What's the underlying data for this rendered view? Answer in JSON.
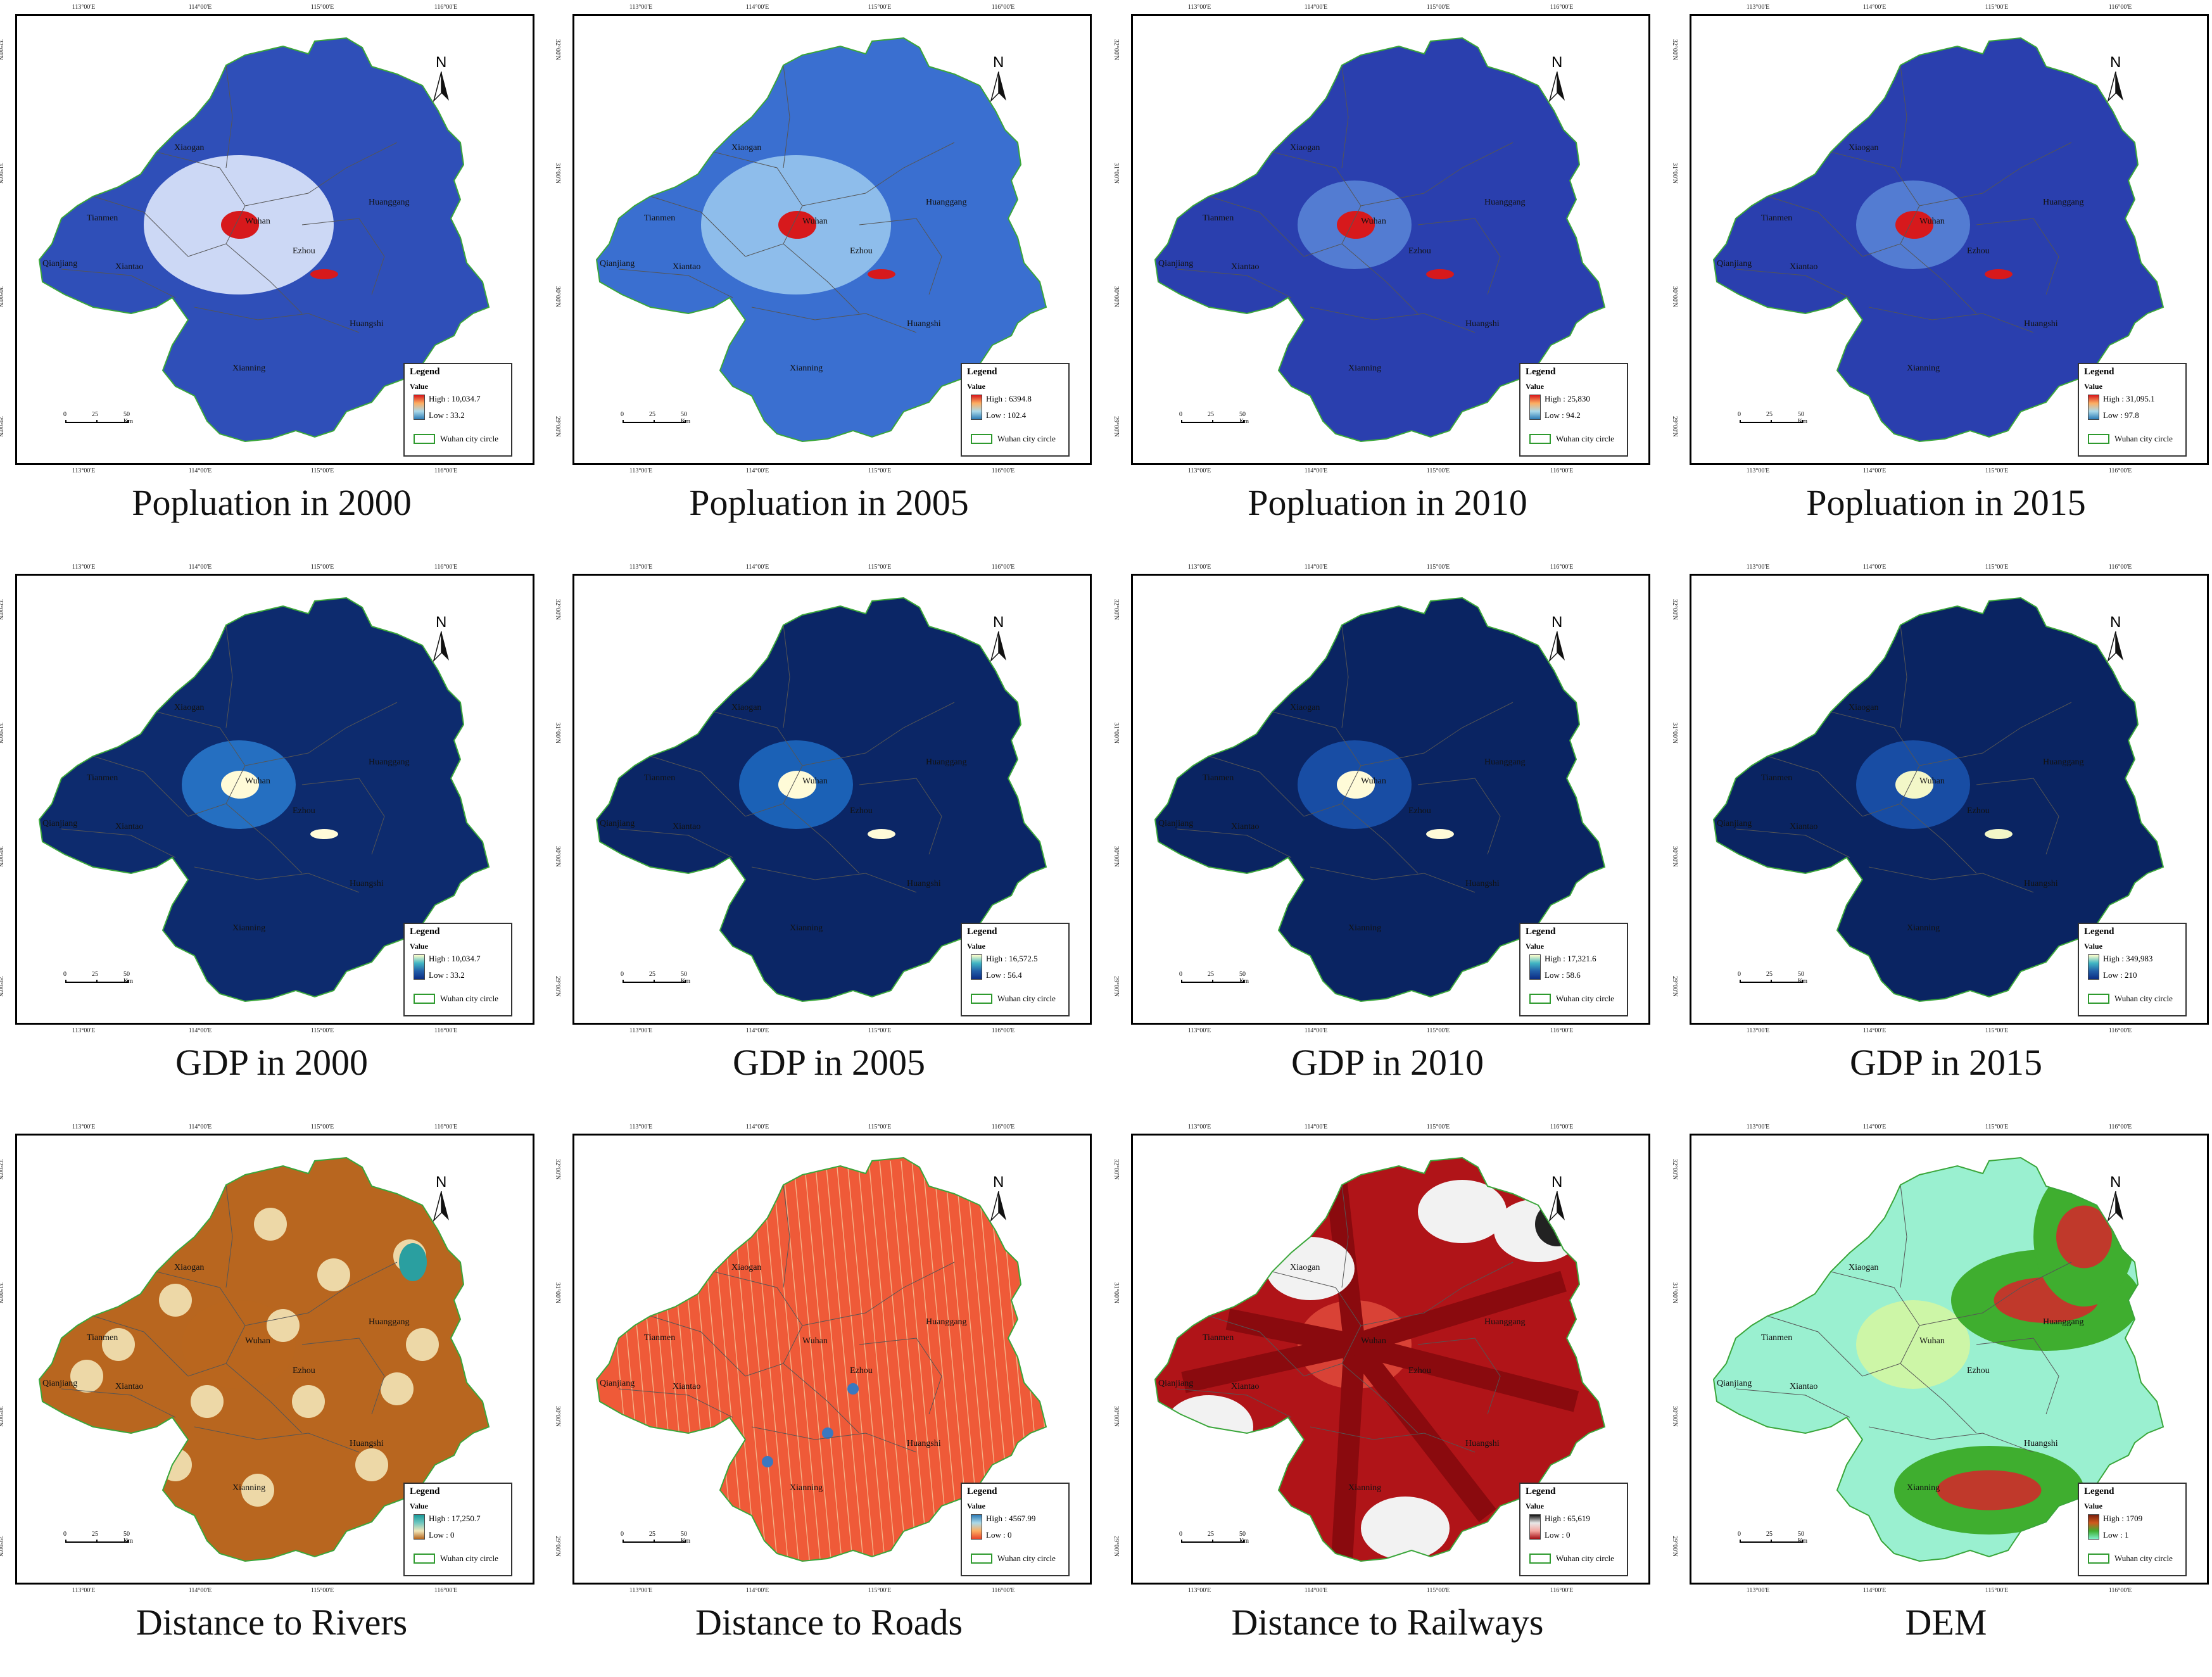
{
  "panels": [
    {
      "id": "pop2000",
      "caption": "Popluation in 2000",
      "legend": {
        "title": "Legend",
        "value_label": "Value",
        "high": "High : 10,034.7",
        "low": "Low : 33.2",
        "boundary": "Wuhan city circle",
        "ramp": [
          "#d7191c",
          "#fdae61",
          "#abd9e9",
          "#2c7bb6"
        ]
      },
      "fill": "#2f4fb8",
      "core": "#e8f0ff",
      "hot": "#d7191c"
    },
    {
      "id": "pop2005",
      "caption": "Popluation in 2005",
      "legend": {
        "title": "Legend",
        "value_label": "Value",
        "high": "High : 6394.8",
        "low": "Low : 102.4",
        "boundary": "Wuhan city circle",
        "ramp": [
          "#d7191c",
          "#fdae61",
          "#abd9e9",
          "#2c7bb6"
        ]
      },
      "fill": "#3a6fd0",
      "core": "#9ecbf0",
      "hot": "#d7191c"
    },
    {
      "id": "pop2010",
      "caption": "Popluation in 2010",
      "legend": {
        "title": "Legend",
        "value_label": "Value",
        "high": "High : 25,830",
        "low": "Low : 94.2",
        "boundary": "Wuhan city circle",
        "ramp": [
          "#d7191c",
          "#fdae61",
          "#abd9e9",
          "#2c7bb6"
        ]
      },
      "fill": "#2a3fae",
      "core": "#5a87d8",
      "hot": "#d7191c"
    },
    {
      "id": "pop2015",
      "caption": "Popluation in 2015",
      "legend": {
        "title": "Legend",
        "value_label": "Value",
        "high": "High : 31,095.1",
        "low": "Low : 97.8",
        "boundary": "Wuhan city circle",
        "ramp": [
          "#d7191c",
          "#fdae61",
          "#abd9e9",
          "#2c7bb6"
        ]
      },
      "fill": "#2a3fae",
      "core": "#5a87d8",
      "hot": "#d7191c"
    },
    {
      "id": "gdp2000",
      "caption": "GDP in 2000",
      "legend": {
        "title": "Legend",
        "value_label": "Value",
        "high": "High : 10,034.7",
        "low": "Low : 33.2",
        "boundary": "Wuhan city circle",
        "ramp": [
          "#ffffcc",
          "#41b6c4",
          "#225ea8",
          "#0c2c84"
        ]
      },
      "fill": "#0d2b6e",
      "core": "#2a7bd0",
      "hot": "#fffbd8"
    },
    {
      "id": "gdp2005",
      "caption": "GDP in 2005",
      "legend": {
        "title": "Legend",
        "value_label": "Value",
        "high": "High : 16,572.5",
        "low": "Low : 56.4",
        "boundary": "Wuhan city circle",
        "ramp": [
          "#ffffcc",
          "#41b6c4",
          "#225ea8",
          "#0c2c84"
        ]
      },
      "fill": "#0b2666",
      "core": "#1f6cc4",
      "hot": "#fffbd8"
    },
    {
      "id": "gdp2010",
      "caption": "GDP in 2010",
      "legend": {
        "title": "Legend",
        "value_label": "Value",
        "high": "High : 17,321.6",
        "low": "Low : 58.6",
        "boundary": "Wuhan city circle",
        "ramp": [
          "#ffffcc",
          "#41b6c4",
          "#225ea8",
          "#0c2c84"
        ]
      },
      "fill": "#0a2462",
      "core": "#1b55b0",
      "hot": "#fffbd8"
    },
    {
      "id": "gdp2015",
      "caption": "GDP in 2015",
      "legend": {
        "title": "Legend",
        "value_label": "Value",
        "high": "High : 349,983",
        "low": "Low : 210",
        "boundary": "Wuhan city circle",
        "ramp": [
          "#ffffcc",
          "#41b6c4",
          "#225ea8",
          "#0c2c84"
        ]
      },
      "fill": "#0a2462",
      "core": "#1b55b0",
      "hot": "#f3f7c8"
    },
    {
      "id": "river",
      "caption": "Distance to Rivers",
      "legend": {
        "title": "Legend",
        "value_label": "Value",
        "high": "High : 17,250.7",
        "low": "Low : 0",
        "boundary": "Wuhan city circle",
        "ramp": [
          "#1a9a9a",
          "#6fc7c0",
          "#f2e6b8",
          "#b5651d"
        ]
      },
      "fill": "#b8661f",
      "core": "#b8661f",
      "hot": "#f3e4b6"
    },
    {
      "id": "road",
      "caption": "Distance to Roads",
      "legend": {
        "title": "Legend",
        "value_label": "Value",
        "high": "High : 4567.99",
        "low": "Low : 0",
        "boundary": "Wuhan city circle",
        "ramp": [
          "#2c7bb6",
          "#abd9e9",
          "#fdae61",
          "#e8442a"
        ]
      },
      "fill": "#ef5a38",
      "core": "#ef5a38",
      "hot": "#3a78c0"
    },
    {
      "id": "rail",
      "caption": "Distance to Railways",
      "legend": {
        "title": "Legend",
        "value_label": "Value",
        "high": "High : 65,619",
        "low": "Low : 0",
        "boundary": "Wuhan city circle",
        "ramp": [
          "#111111",
          "#e8e8e8",
          "#f4a6a0",
          "#a50f15"
        ]
      },
      "fill": "#b01418",
      "core": "#e04a3c",
      "hot": "#f4f4f4"
    },
    {
      "id": "dem",
      "caption": "DEM",
      "legend": {
        "title": "Legend",
        "value_label": "Value",
        "high": "High : 1709",
        "low": "Low : 1",
        "boundary": "Wuhan city circle",
        "ramp": [
          "#7a1f0e",
          "#d05a1c",
          "#3fae2f",
          "#7ff0c8"
        ]
      },
      "fill": "#9af0d0",
      "core": "#d6f7a0",
      "hot": "#c0392b"
    }
  ],
  "place_names": {
    "xiaogan": "Xiaogan",
    "tianmen": "Tianmen",
    "qianjiang": "Qianjiang",
    "xiantao": "Xiantao",
    "wuhan": "Wuhan",
    "ezhou": "Ezhou",
    "huanggang": "Huanggang",
    "huangshi": "Huangshi",
    "xianning": "Xianning"
  },
  "graticule": {
    "top": [
      "113°00'E",
      "114°00'E",
      "115°00'E",
      "116°00'E"
    ],
    "left": [
      "32°00'N",
      "31°00'N",
      "30°00'N",
      "29°00'N"
    ],
    "right": [
      "31°00'N",
      "30°00'N",
      "29°00'N"
    ]
  },
  "scale": {
    "s0": "0",
    "s1": "25",
    "s2": "50 Km"
  },
  "north": "N"
}
